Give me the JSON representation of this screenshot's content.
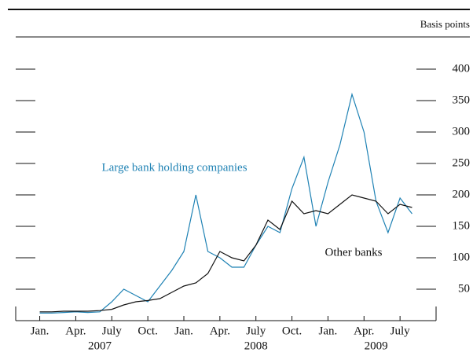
{
  "chart_data": {
    "type": "line",
    "y_axis_label": "Basis points",
    "annotations": [
      {
        "text": "Large bank holding companies",
        "series": 0
      },
      {
        "text": "Other banks",
        "series": 1
      }
    ],
    "x": [
      "2007-01",
      "2007-02",
      "2007-03",
      "2007-04",
      "2007-05",
      "2007-06",
      "2007-07",
      "2007-08",
      "2007-09",
      "2007-10",
      "2007-11",
      "2007-12",
      "2008-01",
      "2008-02",
      "2008-03",
      "2008-04",
      "2008-05",
      "2008-06",
      "2008-07",
      "2008-08",
      "2008-09",
      "2008-10",
      "2008-11",
      "2008-12",
      "2009-01",
      "2009-02",
      "2009-03",
      "2009-04",
      "2009-05",
      "2009-06",
      "2009-07",
      "2009-08"
    ],
    "series": [
      {
        "name": "Large bank holding companies",
        "color": "#1f82b4",
        "values": [
          12,
          12,
          13,
          14,
          13,
          14,
          30,
          50,
          40,
          30,
          55,
          80,
          110,
          200,
          110,
          100,
          85,
          85,
          120,
          150,
          140,
          210,
          260,
          150,
          220,
          280,
          360,
          300,
          190,
          140,
          195,
          170
        ]
      },
      {
        "name": "Other banks",
        "color": "#111111",
        "values": [
          14,
          14,
          15,
          15,
          15,
          16,
          18,
          25,
          30,
          32,
          35,
          45,
          55,
          60,
          75,
          110,
          100,
          95,
          120,
          160,
          145,
          190,
          170,
          175,
          170,
          185,
          200,
          195,
          190,
          170,
          185,
          180
        ]
      }
    ],
    "xlim": [
      "2006-11",
      "2009-10"
    ],
    "xticks": [
      {
        "value": "2007-01",
        "label": "Jan."
      },
      {
        "value": "2007-04",
        "label": "Apr."
      },
      {
        "value": "2007-07",
        "label": "July"
      },
      {
        "value": "2007-10",
        "label": "Oct."
      },
      {
        "value": "2008-01",
        "label": "Jan."
      },
      {
        "value": "2008-04",
        "label": "Apr."
      },
      {
        "value": "2008-07",
        "label": "July"
      },
      {
        "value": "2008-10",
        "label": "Oct."
      },
      {
        "value": "2009-01",
        "label": "Jan."
      },
      {
        "value": "2009-04",
        "label": "Apr."
      },
      {
        "value": "2009-07",
        "label": "July"
      }
    ],
    "year_labels": [
      {
        "value": "2007-06",
        "label": "2007"
      },
      {
        "value": "2008-07",
        "label": "2008"
      },
      {
        "value": "2009-05",
        "label": "2009"
      }
    ],
    "ylim": [
      0,
      450
    ],
    "yticks": [
      50,
      100,
      150,
      200,
      250,
      300,
      350,
      400
    ]
  }
}
